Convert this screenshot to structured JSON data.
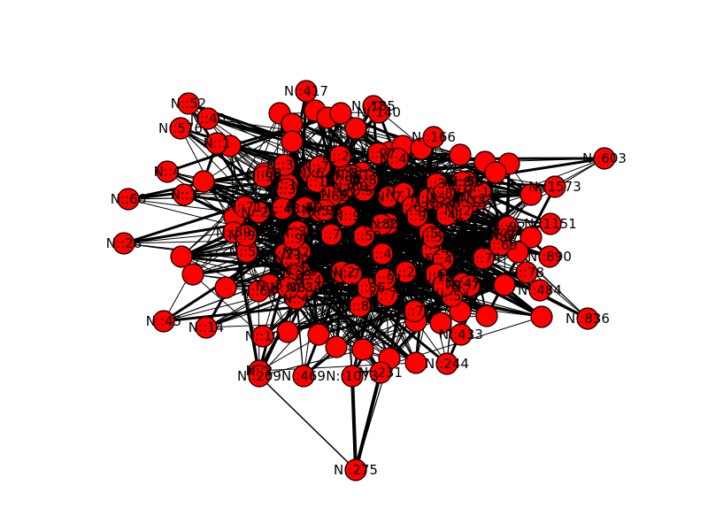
{
  "graph": {
    "node_color": "#ff0000",
    "edge_color": "#000000",
    "nodes": [
      {
        "id": "n_417",
        "label": "N::417"
      },
      {
        "id": "n_52",
        "label": "N::52"
      },
      {
        "id": "n_40",
        "label": "N::40"
      },
      {
        "id": "n_576",
        "label": "N::576"
      },
      {
        "id": "n_1a",
        "label": "N::1"
      },
      {
        "id": "n_185",
        "label": "N::185"
      },
      {
        "id": "n_140",
        "label": "N::140"
      },
      {
        "id": "n_166",
        "label": "N::166"
      },
      {
        "id": "n_603",
        "label": "N::603"
      },
      {
        "id": "n_1573",
        "label": "N::1573"
      },
      {
        "id": "n_4a",
        "label": "N::4"
      },
      {
        "id": "n_66",
        "label": "N::66"
      },
      {
        "id": "n_1b",
        "label": "N::1"
      },
      {
        "id": "n_1151",
        "label": "N::1151"
      },
      {
        "id": "n_28",
        "label": "N::28"
      },
      {
        "id": "n_890",
        "label": "N::890"
      },
      {
        "id": "n_78",
        "label": "N::78"
      },
      {
        "id": "n_484",
        "label": "N::484"
      },
      {
        "id": "n_45",
        "label": "N::45"
      },
      {
        "id": "n_14",
        "label": "N::14"
      },
      {
        "id": "n_836",
        "label": "N::836"
      },
      {
        "id": "n_10",
        "label": "N::10"
      },
      {
        "id": "n_433",
        "label": "N::433"
      },
      {
        "id": "n_244",
        "label": "N::244"
      },
      {
        "id": "n_2",
        "label": "N::2"
      },
      {
        "id": "n_209",
        "label": "N::209"
      },
      {
        "id": "n_469",
        "label": "N::469"
      },
      {
        "id": "n_1073",
        "label": "N::1073"
      },
      {
        "id": "n_231",
        "label": "N::231"
      },
      {
        "id": "n_275",
        "label": "N::275"
      },
      {
        "id": "n_c1",
        "label": "N::1"
      },
      {
        "id": "n_c2",
        "label": "N::2"
      },
      {
        "id": "n_c3",
        "label": "N::3"
      },
      {
        "id": "n_c4",
        "label": "N::4"
      },
      {
        "id": "n_c5",
        "label": "N::5"
      },
      {
        "id": "n_c6",
        "label": "N::6"
      },
      {
        "id": "n_c7",
        "label": "N::7"
      },
      {
        "id": "n_c8",
        "label": "N::8"
      },
      {
        "id": "n_c9",
        "label": "N::9"
      },
      {
        "id": "n_c10",
        "label": "N::11"
      },
      {
        "id": "n_c11",
        "label": "N::12"
      },
      {
        "id": "n_c12",
        "label": "N::13"
      },
      {
        "id": "n_c13",
        "label": "N::15"
      },
      {
        "id": "n_c14",
        "label": "N::16"
      },
      {
        "id": "n_c15",
        "label": "N::17"
      },
      {
        "id": "n_c16",
        "label": "N::18"
      },
      {
        "id": "n_c17",
        "label": "N::19"
      },
      {
        "id": "n_c18",
        "label": "N::20"
      },
      {
        "id": "n_c19",
        "label": "N::21"
      },
      {
        "id": "n_c20",
        "label": "N::22"
      },
      {
        "id": "n_c21",
        "label": "N::23"
      },
      {
        "id": "n_c22",
        "label": "N::24"
      },
      {
        "id": "n_c23",
        "label": "N::25"
      },
      {
        "id": "n_c24",
        "label": "N::26"
      },
      {
        "id": "n_c25",
        "label": "N::27"
      },
      {
        "id": "n_c26",
        "label": "N::29"
      },
      {
        "id": "n_c27",
        "label": "N::30"
      },
      {
        "id": "n_c28",
        "label": "N::31"
      },
      {
        "id": "n_c29",
        "label": "N::32"
      },
      {
        "id": "n_c30",
        "label": "N::33"
      },
      {
        "id": "n_c31",
        "label": "N::34"
      },
      {
        "id": "n_c32",
        "label": "N::35"
      },
      {
        "id": "n_c33",
        "label": "N::36"
      },
      {
        "id": "n_c34",
        "label": "N::37"
      },
      {
        "id": "n_c35",
        "label": "N::38"
      },
      {
        "id": "n_c36",
        "label": "N::39"
      },
      {
        "id": "n_c37",
        "label": "N::41"
      },
      {
        "id": "n_c38",
        "label": "N::42"
      },
      {
        "id": "n_c39",
        "label": "N::43"
      },
      {
        "id": "n_c40",
        "label": "N::44"
      },
      {
        "id": "n_c41",
        "label": "N::46"
      },
      {
        "id": "n_c42",
        "label": "N::47"
      },
      {
        "id": "n_c43",
        "label": "N::48"
      },
      {
        "id": "n_c44",
        "label": "N::49"
      },
      {
        "id": "n_c45",
        "label": "N::50"
      },
      {
        "id": "n_c46",
        "label": "N::51"
      },
      {
        "id": "n_c47",
        "label": "N::53"
      },
      {
        "id": "n_c48",
        "label": "N::54"
      },
      {
        "id": "n_c49",
        "label": "N::55"
      },
      {
        "id": "n_c50",
        "label": "N::56"
      },
      {
        "id": "n_c51",
        "label": "N::57"
      },
      {
        "id": "n_c52",
        "label": "N::58"
      },
      {
        "id": "n_c53",
        "label": "N::59"
      },
      {
        "id": "n_c54",
        "label": "N::60"
      },
      {
        "id": "n_c55",
        "label": "N::61"
      },
      {
        "id": "n_c56",
        "label": "N::62"
      },
      {
        "id": "n_c57",
        "label": "N::63"
      },
      {
        "id": "n_c58",
        "label": "N::64"
      },
      {
        "id": "n_c59",
        "label": "N::65"
      },
      {
        "id": "n_c60",
        "label": "N::67"
      },
      {
        "id": "n_c61",
        "label": "N::68"
      },
      {
        "id": "n_c62",
        "label": "N::69"
      },
      {
        "id": "n_c63",
        "label": "N::70"
      },
      {
        "id": "n_c64",
        "label": "N::71"
      },
      {
        "id": "n_c65",
        "label": "N::72"
      },
      {
        "id": "n_c66",
        "label": "N::73"
      },
      {
        "id": "n_c67",
        "label": "N::74"
      },
      {
        "id": "n_c68",
        "label": "N::75"
      },
      {
        "id": "n_c69",
        "label": "N::76"
      },
      {
        "id": "n_c70",
        "label": "N::77"
      },
      {
        "id": "n_c71",
        "label": "N::79"
      },
      {
        "id": "n_c72",
        "label": "N::80"
      },
      {
        "id": "n_c73",
        "label": "N::81"
      },
      {
        "id": "n_c74",
        "label": "N::82"
      },
      {
        "id": "n_c75",
        "label": "N::83"
      },
      {
        "id": "n_c76",
        "label": "N::84"
      },
      {
        "id": "n_c77",
        "label": "N::85"
      },
      {
        "id": "n_c78",
        "label": "N::86"
      },
      {
        "id": "n_c79",
        "label": "N::87"
      },
      {
        "id": "n_c80",
        "label": "N::88"
      },
      {
        "id": "n_c81",
        "label": "N::89"
      },
      {
        "id": "n_c82",
        "label": "N::90"
      },
      {
        "id": "n_c83",
        "label": "N::91"
      },
      {
        "id": "n_c84",
        "label": "N::92"
      },
      {
        "id": "n_c85",
        "label": "N::93"
      },
      {
        "id": "n_c86",
        "label": "N::94"
      },
      {
        "id": "n_c87",
        "label": "N::95"
      },
      {
        "id": "n_c88",
        "label": "N::96"
      },
      {
        "id": "n_c89",
        "label": "N::97"
      },
      {
        "id": "n_c90",
        "label": "N::98"
      }
    ]
  }
}
